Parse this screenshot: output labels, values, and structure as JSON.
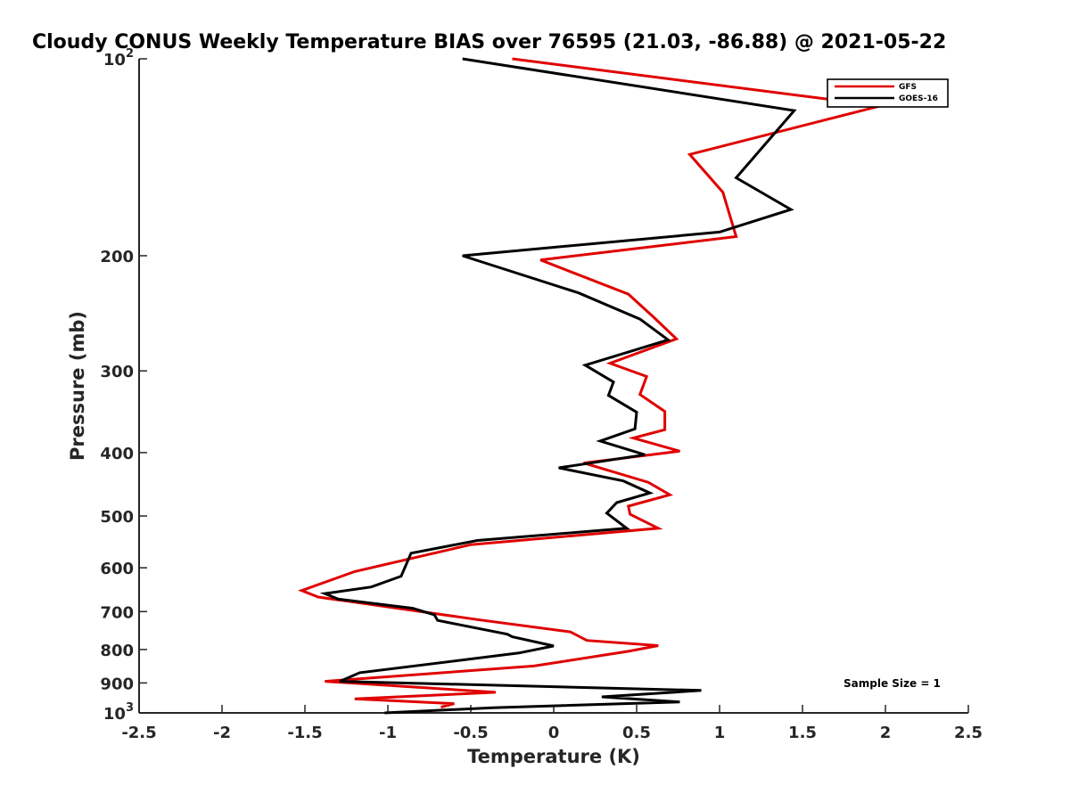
{
  "chart_data": {
    "type": "line",
    "title": "Cloudy CONUS Weekly Temperature BIAS over 76595 (21.03, -86.88) @ 2021-05-22",
    "xlabel": "Temperature (K)",
    "ylabel": "Pressure (mb)",
    "xlim": [
      -2.5,
      2.5
    ],
    "ylim": [
      100,
      1000
    ],
    "yscale": "log",
    "y_direction": "reversed",
    "grid": false,
    "legend_position": "top-right",
    "xticks": [
      -2.5,
      -2,
      -1.5,
      -1,
      -0.5,
      0,
      0.5,
      1,
      1.5,
      2,
      2.5
    ],
    "xtick_labels": [
      "-2.5",
      "-2",
      "-1.5",
      "-1",
      "-0.5",
      "0",
      "0.5",
      "1",
      "1.5",
      "2",
      "2.5"
    ],
    "yticks": [
      {
        "value": 100,
        "base": "10",
        "exp": "2"
      },
      {
        "value": 200,
        "label": "200"
      },
      {
        "value": 300,
        "label": "300"
      },
      {
        "value": 400,
        "label": "400"
      },
      {
        "value": 500,
        "label": "500"
      },
      {
        "value": 600,
        "label": "600"
      },
      {
        "value": 700,
        "label": "700"
      },
      {
        "value": 800,
        "label": "800"
      },
      {
        "value": 900,
        "label": "900"
      },
      {
        "value": 1000,
        "base": "10",
        "exp": "3"
      }
    ],
    "series": [
      {
        "name": "GFS",
        "color": "#e00000",
        "points": [
          [
            -0.25,
            100
          ],
          [
            1.97,
            118
          ],
          [
            0.82,
            140
          ],
          [
            1.02,
            160
          ],
          [
            1.1,
            187
          ],
          [
            -0.08,
            203
          ],
          [
            0.45,
            229
          ],
          [
            0.6,
            248
          ],
          [
            0.74,
            268
          ],
          [
            0.34,
            292
          ],
          [
            0.56,
            306
          ],
          [
            0.52,
            326
          ],
          [
            0.67,
            346
          ],
          [
            0.67,
            369
          ],
          [
            0.48,
            380
          ],
          [
            0.76,
            398
          ],
          [
            0.18,
            415
          ],
          [
            0.57,
            444
          ],
          [
            0.7,
            464
          ],
          [
            0.45,
            483
          ],
          [
            0.46,
            497
          ],
          [
            0.63,
            522
          ],
          [
            -0.5,
            553
          ],
          [
            -1.2,
            608
          ],
          [
            -1.52,
            650
          ],
          [
            -1.42,
            665
          ],
          [
            -0.46,
            720
          ],
          [
            0.1,
            752
          ],
          [
            0.2,
            775
          ],
          [
            0.63,
            789
          ],
          [
            0.45,
            805
          ],
          [
            -0.12,
            848
          ],
          [
            -1.38,
            895
          ],
          [
            -0.35,
            930
          ],
          [
            -1.2,
            952
          ],
          [
            -0.6,
            968
          ],
          [
            -0.68,
            980
          ]
        ]
      },
      {
        "name": "GOES-16",
        "color": "#000000",
        "points": [
          [
            -0.55,
            100
          ],
          [
            1.45,
            120
          ],
          [
            1.1,
            152
          ],
          [
            1.43,
            170
          ],
          [
            1.0,
            184
          ],
          [
            -0.55,
            200
          ],
          [
            0.15,
            228
          ],
          [
            0.52,
            250
          ],
          [
            0.69,
            269
          ],
          [
            0.19,
            294
          ],
          [
            0.36,
            312
          ],
          [
            0.33,
            327
          ],
          [
            0.5,
            347
          ],
          [
            0.49,
            368
          ],
          [
            0.28,
            384
          ],
          [
            0.55,
            403
          ],
          [
            0.03,
            422
          ],
          [
            0.42,
            442
          ],
          [
            0.58,
            461
          ],
          [
            0.38,
            477
          ],
          [
            0.32,
            495
          ],
          [
            0.44,
            522
          ],
          [
            -0.46,
            545
          ],
          [
            -0.86,
            570
          ],
          [
            -0.92,
            618
          ],
          [
            -1.1,
            642
          ],
          [
            -1.38,
            657
          ],
          [
            -1.3,
            670
          ],
          [
            -0.85,
            692
          ],
          [
            -0.72,
            708
          ],
          [
            -0.7,
            722
          ],
          [
            -0.28,
            758
          ],
          [
            -0.25,
            765
          ],
          [
            0.0,
            790
          ],
          [
            -0.21,
            810
          ],
          [
            -1.17,
            868
          ],
          [
            -1.29,
            895
          ],
          [
            0.89,
            924
          ],
          [
            0.29,
            945
          ],
          [
            0.76,
            962
          ],
          [
            -0.37,
            982
          ],
          [
            -1.02,
            1000
          ]
        ]
      }
    ],
    "annotation": "Sample Size = 1"
  }
}
